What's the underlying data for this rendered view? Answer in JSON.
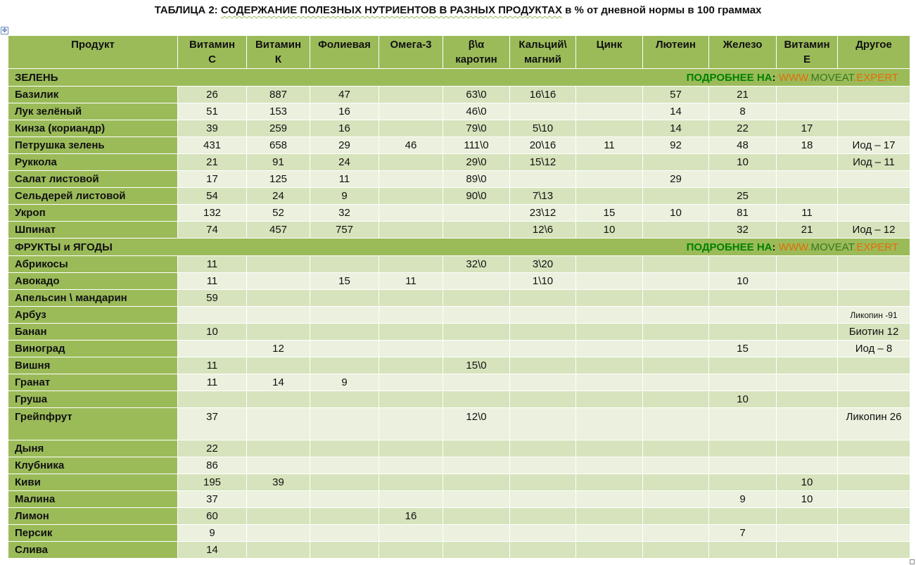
{
  "title": {
    "part1": "ТАБЛИЦА 2: ",
    "part2": "СОДЕРЖАНИЕ ПОЛЕЗНЫХ НУТРИЕНТОВ В РАЗНЫХ ПРОДУКТАХ",
    "part3": " в % от дневной нормы в 100 граммах"
  },
  "columns": [
    [
      "Продукт",
      ""
    ],
    [
      "Витамин",
      "С"
    ],
    [
      "Витамин",
      "К"
    ],
    [
      "Фолиевая",
      ""
    ],
    [
      "Омега-3",
      ""
    ],
    [
      "β\\α",
      "каротин"
    ],
    [
      "Кальций\\",
      "магний"
    ],
    [
      "Цинк",
      ""
    ],
    [
      "Лютеин",
      ""
    ],
    [
      "Железо",
      ""
    ],
    [
      "Витамин",
      "Е"
    ],
    [
      "Другое",
      ""
    ]
  ],
  "link": {
    "prefix": "ПОДРОБНЕЕ",
    "na": "НА",
    "colon": ":",
    "www": "WWW.",
    "moveat": "MOVEAT",
    "expert": ".EXPERT"
  },
  "sections": [
    {
      "name": "ЗЕЛЕНЬ",
      "rows": [
        [
          "Базилик",
          "26",
          "887",
          "47",
          "",
          "63\\0",
          "16\\16",
          "",
          "57",
          "21",
          "",
          ""
        ],
        [
          "Лук  зелёный",
          "51",
          "153",
          "16",
          "",
          "46\\0",
          "",
          "",
          "14",
          "8",
          "",
          ""
        ],
        [
          "Кинза (кориандр)",
          "39",
          "259",
          "16",
          "",
          "79\\0",
          "5\\10",
          "",
          "14",
          "22",
          "17",
          ""
        ],
        [
          "Петрушка зелень",
          "431",
          "658",
          "29",
          "46",
          "111\\0",
          "20\\16",
          "11",
          "92",
          "48",
          "18",
          "Иод – 17"
        ],
        [
          "Руккола",
          "21",
          "91",
          "24",
          "",
          "29\\0",
          "15\\12",
          "",
          "",
          "10",
          "",
          "Иод – 11"
        ],
        [
          "Салат листовой",
          "17",
          "125",
          "11",
          "",
          "89\\0",
          "",
          "",
          "29",
          "",
          "",
          ""
        ],
        [
          "Сельдерей листовой",
          "54",
          "24",
          "9",
          "",
          "90\\0",
          "7\\13",
          "",
          "",
          "25",
          "",
          ""
        ],
        [
          "Укроп",
          "132",
          "52",
          "32",
          "",
          "",
          "23\\12",
          "15",
          "10",
          "81",
          "11",
          ""
        ],
        [
          "Шпинат",
          "74",
          "457",
          "757",
          "",
          "",
          "12\\6",
          "10",
          "",
          "32",
          "21",
          "Иод – 12"
        ]
      ]
    },
    {
      "name": "ФРУКТЫ и ЯГОДЫ",
      "rows": [
        [
          "Абрикосы",
          "11",
          "",
          "",
          "",
          "32\\0",
          "3\\20",
          "",
          "",
          "",
          "",
          ""
        ],
        [
          "Авокадо",
          "11",
          "",
          "15",
          "11",
          "",
          "1\\10",
          "",
          "",
          "10",
          "",
          ""
        ],
        [
          "Апельсин \\ мандарин",
          "59",
          "",
          "",
          "",
          "",
          "",
          "",
          "",
          "",
          "",
          ""
        ],
        [
          "Арбуз",
          "",
          "",
          "",
          "",
          "",
          "",
          "",
          "",
          "",
          "",
          "Ликопин -91"
        ],
        [
          "Банан",
          "10",
          "",
          "",
          "",
          "",
          "",
          "",
          "",
          "",
          "",
          "Биотин 12"
        ],
        [
          "Виноград",
          "",
          "12",
          "",
          "",
          "",
          "",
          "",
          "",
          "15",
          "",
          "Иод – 8"
        ],
        [
          "Вишня",
          "11",
          "",
          "",
          "",
          "15\\0",
          "",
          "",
          "",
          "",
          "",
          ""
        ],
        [
          "Гранат",
          "11",
          "14",
          "9",
          "",
          "",
          "",
          "",
          "",
          "",
          "",
          ""
        ],
        [
          "Груша",
          "",
          "",
          "",
          "",
          "",
          "",
          "",
          "",
          "10",
          "",
          ""
        ],
        [
          "Грейпфрут",
          "37",
          "",
          "",
          "",
          "12\\0",
          "",
          "",
          "",
          "",
          "",
          "Ликопин 26"
        ],
        [
          "Дыня",
          "22",
          "",
          "",
          "",
          "",
          "",
          "",
          "",
          "",
          "",
          ""
        ],
        [
          "Клубника",
          "86",
          "",
          "",
          "",
          "",
          "",
          "",
          "",
          "",
          "",
          ""
        ],
        [
          "Киви",
          "195",
          "39",
          "",
          "",
          "",
          "",
          "",
          "",
          "",
          "10",
          ""
        ],
        [
          "Малина",
          "37",
          "",
          "",
          "",
          "",
          "",
          "",
          "",
          "9",
          "10",
          ""
        ],
        [
          "Лимон",
          "60",
          "",
          "",
          "16",
          "",
          "",
          "",
          "",
          "",
          "",
          ""
        ],
        [
          "Персик",
          "9",
          "",
          "",
          "",
          "",
          "",
          "",
          "",
          "7",
          "",
          ""
        ],
        [
          "Слива",
          "14",
          "",
          "",
          "",
          "",
          "",
          "",
          "",
          "",
          "",
          ""
        ]
      ]
    }
  ]
}
